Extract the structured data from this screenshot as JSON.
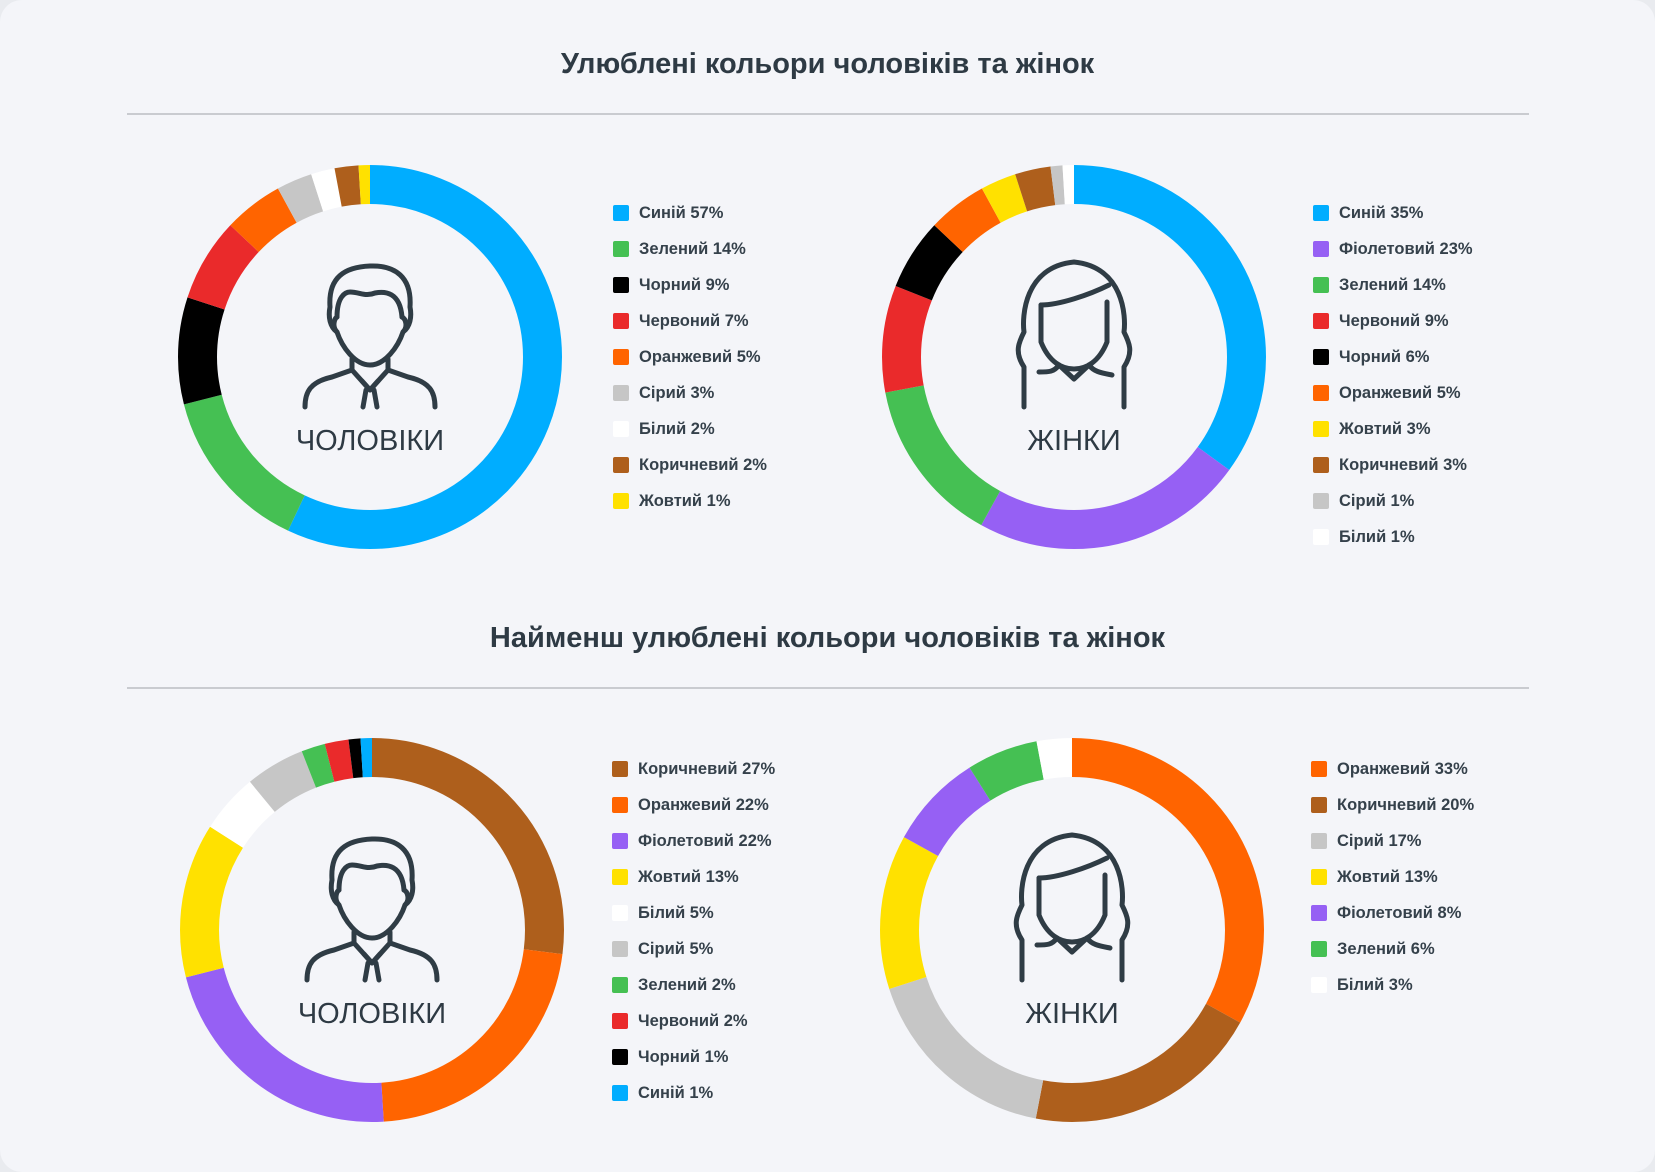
{
  "section1": {
    "title": "Улюблені кольори чоловіків та жінок"
  },
  "section2": {
    "title": "Найменш улюблені кольори чоловіків та жінок"
  },
  "labels": {
    "men": "ЧОЛОВІКИ",
    "women": "ЖІНКИ"
  },
  "colors": {
    "Синій": "#00adff",
    "Зелений": "#45c053",
    "Чорний": "#000000",
    "Червоний": "#ea2a2b",
    "Оранжевий": "#ff6400",
    "Сірий": "#c6c6c6",
    "Білий": "#ffffff",
    "Коричневий": "#ae5f1c",
    "Жовтий": "#ffe100",
    "Фіолетовий": "#9660f4"
  },
  "chart_data": [
    {
      "type": "pie",
      "donut": true,
      "section": "Улюблені кольори чоловіків та жінок",
      "group": "ЧОЛОВІКИ",
      "categories": [
        "Синій",
        "Зелений",
        "Чорний",
        "Червоний",
        "Оранжевий",
        "Сірий",
        "Білий",
        "Коричневий",
        "Жовтий"
      ],
      "values": [
        57,
        14,
        9,
        7,
        5,
        3,
        2,
        2,
        1
      ],
      "legend_labels": [
        "Синій 57%",
        "Зелений 14%",
        "Чорний 9%",
        "Червоний 7%",
        "Оранжевий 5%",
        "Сірий 3%",
        "Білий 2%",
        "Коричневий 2%",
        "Жовтий 1%"
      ],
      "legend": "right"
    },
    {
      "type": "pie",
      "donut": true,
      "section": "Улюблені кольори чоловіків та жінок",
      "group": "ЖІНКИ",
      "categories": [
        "Синій",
        "Фіолетовий",
        "Зелений",
        "Червоний",
        "Чорний",
        "Оранжевий",
        "Жовтий",
        "Коричневий",
        "Сірий",
        "Білий"
      ],
      "values": [
        35,
        23,
        14,
        9,
        6,
        5,
        3,
        3,
        1,
        1
      ],
      "legend_labels": [
        "Синій 35%",
        "Фіолетовий 23%",
        "Зелений 14%",
        "Червоний 9%",
        "Чорний 6%",
        "Оранжевий 5%",
        "Жовтий 3%",
        "Коричневий 3%",
        "Сірий 1%",
        "Білий 1%"
      ],
      "legend": "right"
    },
    {
      "type": "pie",
      "donut": true,
      "section": "Найменш улюблені кольори чоловіків та жінок",
      "group": "ЧОЛОВІКИ",
      "categories": [
        "Коричневий",
        "Оранжевий",
        "Фіолетовий",
        "Жовтий",
        "Білий",
        "Сірий",
        "Зелений",
        "Червоний",
        "Чорний",
        "Синій"
      ],
      "values": [
        27,
        22,
        22,
        13,
        5,
        5,
        2,
        2,
        1,
        1
      ],
      "legend_labels": [
        "Коричневий 27%",
        "Оранжевий 22%",
        "Фіолетовий 22%",
        "Жовтий 13%",
        "Білий 5%",
        "Сірий 5%",
        "Зелений 2%",
        "Червоний 2%",
        "Чорний 1%",
        "Синій 1%"
      ],
      "legend": "right"
    },
    {
      "type": "pie",
      "donut": true,
      "section": "Найменш улюблені кольори чоловіків та жінок",
      "group": "ЖІНКИ",
      "categories": [
        "Оранжевий",
        "Коричневий",
        "Сірий",
        "Жовтий",
        "Фіолетовий",
        "Зелений",
        "Білий"
      ],
      "values": [
        33,
        20,
        17,
        13,
        8,
        6,
        3
      ],
      "legend_labels": [
        "Оранжевий 33%",
        "Коричневий 20%",
        "Сірий 17%",
        "Жовтий 13%",
        "Фіолетовий 8%",
        "Зелений 6%",
        "Білий 3%"
      ],
      "legend": "right"
    }
  ]
}
